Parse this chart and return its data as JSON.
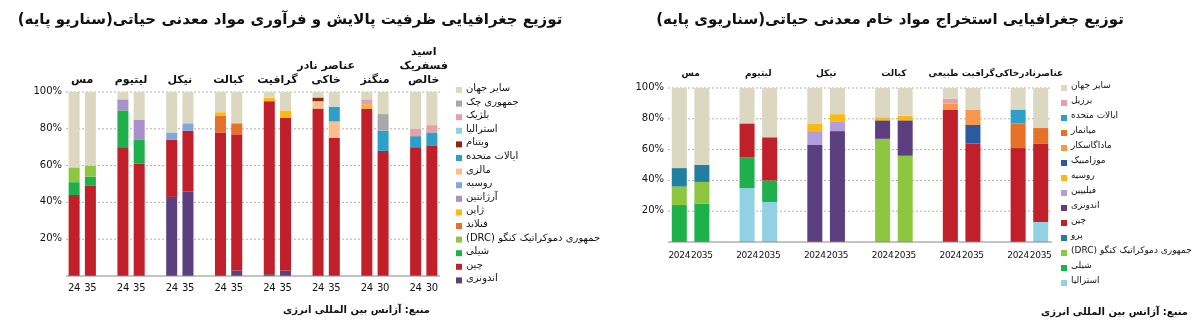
{
  "chart_data": [
    {
      "type": "bar",
      "stacked": true,
      "title": "توزیع جغرافیایی ظرفیت پالایش و فرآوری مواد معدنی حیاتی(سناریو پایه)",
      "categories": [
        "24",
        "35",
        null,
        "24",
        "35",
        null,
        "24",
        "35",
        null,
        "24",
        "35",
        null,
        "24",
        "35",
        null,
        "24",
        "35",
        null,
        "24",
        "30",
        null,
        "24",
        "30"
      ],
      "series": [
        {
          "name": "اندونزی",
          "color": "#5b3f7f",
          "values": [
            0,
            0,
            null,
            0,
            0,
            null,
            43,
            46,
            null,
            0,
            3,
            null,
            1,
            3,
            null,
            0,
            0,
            null,
            0,
            0,
            null,
            0,
            0
          ]
        },
        {
          "name": "چین",
          "color": "#c1202a",
          "values": [
            44,
            49,
            null,
            70,
            61,
            null,
            31,
            33,
            null,
            78,
            74,
            null,
            94,
            83,
            null,
            91,
            75,
            null,
            91,
            68,
            null,
            70,
            71
          ]
        },
        {
          "name": "شیلی",
          "color": "#1db04b",
          "values": [
            7,
            5,
            null,
            20,
            13,
            null,
            0,
            0,
            null,
            0,
            0,
            null,
            0,
            0,
            null,
            0,
            0,
            null,
            0,
            0,
            null,
            0,
            0
          ]
        },
        {
          "name": "جمهوری دموکراتیک کنگو (DRC)",
          "color": "#8dc63f",
          "values": [
            8,
            6,
            null,
            0,
            0,
            null,
            0,
            0,
            null,
            0,
            0,
            null,
            0,
            0,
            null,
            0,
            0,
            null,
            0,
            0,
            null,
            0,
            0
          ]
        },
        {
          "name": "فنلاند",
          "color": "#e8712a",
          "values": [
            0,
            0,
            null,
            0,
            0,
            null,
            0,
            0,
            null,
            9,
            6,
            null,
            0,
            0,
            null,
            0,
            0,
            null,
            0,
            0,
            null,
            0,
            0
          ]
        },
        {
          "name": "ژاپن",
          "color": "#fdb913",
          "values": [
            0,
            0,
            null,
            0,
            0,
            null,
            0,
            0,
            null,
            2,
            0,
            null,
            2,
            4,
            null,
            0,
            0,
            null,
            2,
            0,
            null,
            0,
            0
          ]
        },
        {
          "name": "آرژانتین",
          "color": "#a990c8",
          "values": [
            0,
            0,
            null,
            6,
            11,
            null,
            0,
            0,
            null,
            0,
            0,
            null,
            0,
            0,
            null,
            0,
            0,
            null,
            0,
            0,
            null,
            0,
            0
          ]
        },
        {
          "name": "روسیه",
          "color": "#7fa8dc",
          "values": [
            0,
            0,
            null,
            0,
            0,
            null,
            4,
            4,
            null,
            0,
            0,
            null,
            0,
            0,
            null,
            0,
            0,
            null,
            0,
            0,
            null,
            0,
            0
          ]
        },
        {
          "name": "مالزی",
          "color": "#fbbf8f",
          "values": [
            0,
            0,
            null,
            0,
            0,
            null,
            0,
            0,
            null,
            0,
            0,
            null,
            0,
            0,
            null,
            4,
            9,
            null,
            0,
            0,
            null,
            0,
            0
          ]
        },
        {
          "name": "ایالات متحده",
          "color": "#2ca0c9",
          "values": [
            0,
            0,
            null,
            0,
            0,
            null,
            0,
            0,
            null,
            0,
            0,
            null,
            0,
            0,
            null,
            0,
            8,
            null,
            0,
            11,
            null,
            6,
            7
          ]
        },
        {
          "name": "ویتنام",
          "color": "#8b2a0f",
          "values": [
            0,
            0,
            null,
            0,
            0,
            null,
            0,
            0,
            null,
            0,
            0,
            null,
            0,
            0,
            null,
            2,
            0,
            null,
            0,
            0,
            null,
            0,
            0
          ]
        },
        {
          "name": "استرالیا",
          "color": "#8ecfe0",
          "values": [
            0,
            0,
            null,
            0,
            0,
            null,
            0,
            0,
            null,
            0,
            0,
            null,
            0,
            0,
            null,
            0,
            0,
            null,
            0,
            0,
            null,
            0,
            0
          ]
        },
        {
          "name": "بلژیک",
          "color": "#e8a0a8",
          "values": [
            0,
            0,
            null,
            0,
            0,
            null,
            0,
            0,
            null,
            0,
            0,
            null,
            0,
            0,
            null,
            0,
            0,
            null,
            3,
            0,
            null,
            4,
            4
          ]
        },
        {
          "name": "جمهوری چک",
          "color": "#a8a8a8",
          "values": [
            0,
            0,
            null,
            0,
            0,
            null,
            0,
            0,
            null,
            0,
            0,
            null,
            0,
            0,
            null,
            0,
            0,
            null,
            0,
            9,
            null,
            0,
            0
          ]
        },
        {
          "name": "سایر جهان",
          "color": "#dcd7c0",
          "values": [
            41,
            40,
            null,
            4,
            15,
            null,
            22,
            17,
            null,
            11,
            17,
            null,
            3,
            10,
            null,
            3,
            8,
            null,
            4,
            12,
            null,
            20,
            18
          ]
        }
      ],
      "ylim": [
        0,
        100
      ],
      "yticks": [
        {
          "value": 0,
          "label": null
        },
        {
          "value": 20,
          "label": "20%"
        },
        {
          "value": 40,
          "label": "40%"
        },
        {
          "value": 60,
          "label": "60%"
        },
        {
          "value": 80,
          "label": "80%"
        },
        {
          "value": 100,
          "label": "100%"
        }
      ],
      "grid": "y",
      "legend": "right",
      "annotations": [
        "مس",
        "لیتیوم",
        "نیکل",
        "کبالت",
        "گرافیت",
        "عناصر نادر خاکی",
        "منگنز",
        "اسید فسفریک خالص",
        "منبع: آژانس بین المللی انرژی"
      ]
    },
    {
      "type": "bar",
      "stacked": true,
      "title": "توزیع جغرافیایی استخراج مواد خام معدنی حیاتی(سناریوی پایه)",
      "categories": [
        "2024",
        "2035",
        null,
        "2024",
        "2035",
        null,
        "2024",
        "2035",
        null,
        "2024",
        "2035",
        null,
        "2024",
        "2035",
        null,
        "2024",
        "2035"
      ],
      "series": [
        {
          "name": "استرالیا",
          "color": "#92d1e3",
          "values": [
            0,
            0,
            null,
            35,
            26,
            null,
            0,
            0,
            null,
            0,
            0,
            null,
            0,
            0,
            null,
            0,
            13
          ]
        },
        {
          "name": "شیلی",
          "color": "#1db04b",
          "values": [
            24,
            25,
            null,
            20,
            14,
            null,
            0,
            0,
            null,
            0,
            0,
            null,
            0,
            0,
            null,
            0,
            0
          ]
        },
        {
          "name": "جمهوری دموکراتیک کنگو (DRC)",
          "color": "#8dc63f",
          "values": [
            12,
            14,
            null,
            0,
            0,
            null,
            0,
            0,
            null,
            67,
            56,
            null,
            0,
            0,
            null,
            0,
            0
          ]
        },
        {
          "name": "پرو",
          "color": "#237fa0",
          "values": [
            12,
            11,
            null,
            0,
            0,
            null,
            0,
            0,
            null,
            0,
            0,
            null,
            0,
            0,
            null,
            0,
            0
          ]
        },
        {
          "name": "چین",
          "color": "#c1202a",
          "values": [
            0,
            0,
            null,
            22,
            28,
            null,
            0,
            0,
            null,
            0,
            0,
            null,
            86,
            64,
            null,
            61,
            51
          ]
        },
        {
          "name": "اندونزی",
          "color": "#5b3f7f",
          "values": [
            0,
            0,
            null,
            0,
            0,
            null,
            63,
            72,
            null,
            12,
            23,
            null,
            0,
            0,
            null,
            0,
            0
          ]
        },
        {
          "name": "فیلیپین",
          "color": "#b39ddb",
          "values": [
            0,
            0,
            null,
            0,
            0,
            null,
            9,
            6,
            null,
            0,
            0,
            null,
            0,
            0,
            null,
            0,
            0
          ]
        },
        {
          "name": "روسیه",
          "color": "#fdb913",
          "values": [
            0,
            0,
            null,
            0,
            0,
            null,
            5,
            5,
            null,
            2,
            3,
            null,
            0,
            0,
            null,
            0,
            0
          ]
        },
        {
          "name": "موزامبیک",
          "color": "#2b5aa0",
          "values": [
            0,
            0,
            null,
            0,
            0,
            null,
            0,
            0,
            null,
            0,
            0,
            null,
            0,
            12,
            null,
            0,
            0
          ]
        },
        {
          "name": "ماداگاسکار",
          "color": "#f7974a",
          "values": [
            0,
            0,
            null,
            0,
            0,
            null,
            0,
            0,
            null,
            0,
            0,
            null,
            4,
            10,
            null,
            0,
            0
          ]
        },
        {
          "name": "میانمار",
          "color": "#e8712a",
          "values": [
            0,
            0,
            null,
            0,
            0,
            null,
            0,
            0,
            null,
            0,
            0,
            null,
            0,
            0,
            null,
            16,
            10
          ]
        },
        {
          "name": "ایالات متحده",
          "color": "#2ca0c9",
          "values": [
            0,
            0,
            null,
            0,
            0,
            null,
            0,
            0,
            null,
            0,
            0,
            null,
            0,
            0,
            null,
            9,
            0
          ]
        },
        {
          "name": "برزیل",
          "color": "#e8a0a8",
          "values": [
            0,
            0,
            null,
            0,
            0,
            null,
            0,
            0,
            null,
            0,
            0,
            null,
            3,
            0,
            null,
            0,
            0
          ]
        },
        {
          "name": "سایر جهان",
          "color": "#dcd7c0",
          "values": [
            52,
            50,
            null,
            23,
            32,
            null,
            23,
            17,
            null,
            19,
            18,
            null,
            7,
            14,
            null,
            14,
            26
          ]
        }
      ],
      "ylim": [
        0,
        100
      ],
      "yticks": [
        {
          "value": 0,
          "label": null
        },
        {
          "value": 20,
          "label": "20%"
        },
        {
          "value": 40,
          "label": "40%"
        },
        {
          "value": 60,
          "label": "60%"
        },
        {
          "value": 80,
          "label": "80%"
        },
        {
          "value": 100,
          "label": "100%"
        }
      ],
      "grid": "y",
      "legend": "right",
      "annotations": [
        "مس",
        "لیتیوم",
        "نیکل",
        "کبالت",
        "گرافیت طبیعی",
        "عناصرنادرخاکی",
        "منبع: آژانس بین المللی انرژی"
      ]
    }
  ]
}
